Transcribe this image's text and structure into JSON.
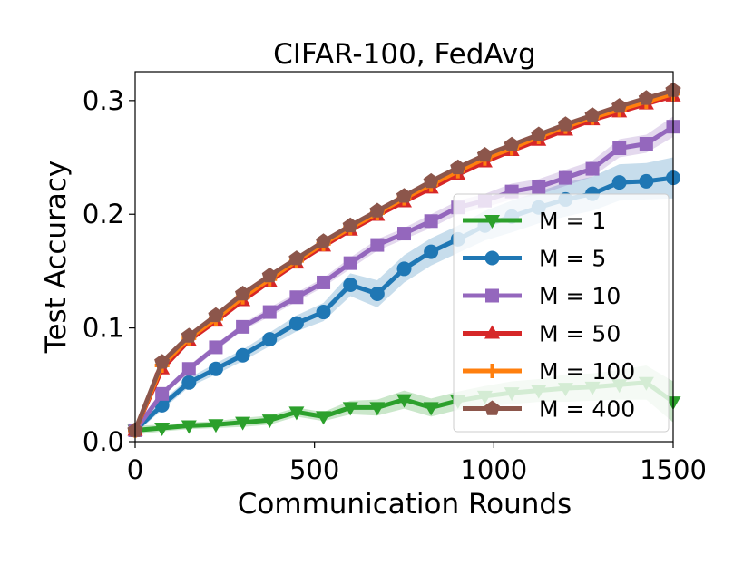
{
  "chart_data": {
    "type": "line",
    "title": "CIFAR-100, FedAvg",
    "xlabel": "Communication Rounds",
    "ylabel": "Test Accuracy",
    "xlim": [
      0,
      1500
    ],
    "ylim": [
      0,
      0.3
    ],
    "x_ticks": [
      0,
      500,
      1000,
      1500
    ],
    "y_ticks": [
      0.0,
      0.1,
      0.2,
      0.3
    ],
    "x_tick_labels": [
      "0",
      "500",
      "1000",
      "1500"
    ],
    "y_tick_labels": [
      "0.0",
      "0.1",
      "0.2",
      "0.3"
    ],
    "grid": false,
    "legend_position": "center-right",
    "x": [
      0,
      75,
      150,
      225,
      300,
      375,
      450,
      525,
      600,
      675,
      750,
      825,
      900,
      975,
      1050,
      1125,
      1200,
      1275,
      1350,
      1425,
      1500
    ],
    "series": [
      {
        "name": "M = 1",
        "color": "#2ca02c",
        "marker": "triangle-down",
        "values": [
          0.01,
          0.012,
          0.014,
          0.015,
          0.017,
          0.019,
          0.026,
          0.022,
          0.03,
          0.03,
          0.037,
          0.03,
          0.036,
          0.04,
          0.043,
          0.045,
          0.047,
          0.048,
          0.05,
          0.052,
          0.035
        ],
        "band": [
          0.004,
          0.003,
          0.003,
          0.003,
          0.004,
          0.004,
          0.004,
          0.004,
          0.006,
          0.007,
          0.008,
          0.008,
          0.008,
          0.009,
          0.01,
          0.01,
          0.012,
          0.012,
          0.013,
          0.015,
          0.018
        ]
      },
      {
        "name": "M = 5",
        "color": "#1f77b4",
        "marker": "circle",
        "values": [
          0.01,
          0.032,
          0.052,
          0.064,
          0.076,
          0.09,
          0.104,
          0.114,
          0.138,
          0.13,
          0.152,
          0.167,
          0.178,
          0.19,
          0.198,
          0.206,
          0.213,
          0.218,
          0.228,
          0.229,
          0.232
        ],
        "band": [
          0.003,
          0.004,
          0.004,
          0.005,
          0.005,
          0.006,
          0.007,
          0.008,
          0.01,
          0.012,
          0.012,
          0.012,
          0.012,
          0.013,
          0.014,
          0.014,
          0.015,
          0.015,
          0.016,
          0.016,
          0.018
        ]
      },
      {
        "name": "M = 10",
        "color": "#9467bd",
        "marker": "square",
        "values": [
          0.01,
          0.042,
          0.064,
          0.083,
          0.101,
          0.114,
          0.127,
          0.14,
          0.157,
          0.173,
          0.183,
          0.194,
          0.206,
          0.212,
          0.22,
          0.224,
          0.232,
          0.24,
          0.258,
          0.262,
          0.277
        ],
        "band": [
          0.002,
          0.003,
          0.003,
          0.003,
          0.003,
          0.004,
          0.004,
          0.004,
          0.005,
          0.005,
          0.005,
          0.006,
          0.006,
          0.006,
          0.007,
          0.007,
          0.007,
          0.007,
          0.008,
          0.008,
          0.009
        ]
      },
      {
        "name": "M = 50",
        "color": "#d62728",
        "marker": "triangle-up",
        "values": [
          0.01,
          0.064,
          0.089,
          0.106,
          0.124,
          0.141,
          0.157,
          0.172,
          0.186,
          0.199,
          0.211,
          0.223,
          0.235,
          0.246,
          0.256,
          0.265,
          0.274,
          0.283,
          0.29,
          0.297,
          0.304
        ]
      },
      {
        "name": "M = 100",
        "color": "#ff7f0e",
        "marker": "plus",
        "values": [
          0.01,
          0.067,
          0.091,
          0.108,
          0.127,
          0.143,
          0.159,
          0.174,
          0.188,
          0.201,
          0.214,
          0.226,
          0.238,
          0.249,
          0.258,
          0.268,
          0.277,
          0.285,
          0.292,
          0.299,
          0.306
        ]
      },
      {
        "name": "M = 400",
        "color": "#8c564b",
        "marker": "pentagon",
        "values": [
          0.01,
          0.07,
          0.093,
          0.111,
          0.13,
          0.146,
          0.161,
          0.176,
          0.19,
          0.203,
          0.216,
          0.229,
          0.241,
          0.252,
          0.261,
          0.27,
          0.279,
          0.287,
          0.295,
          0.302,
          0.309
        ]
      }
    ]
  }
}
